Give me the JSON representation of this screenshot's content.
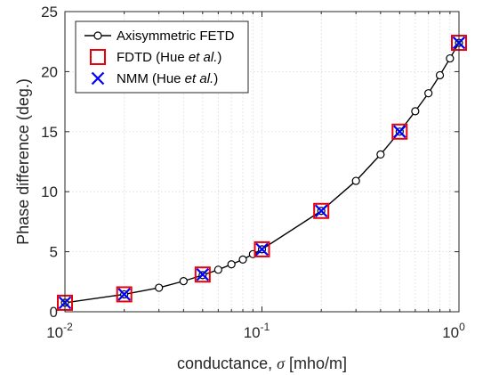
{
  "chart_data": {
    "type": "line",
    "xscale": "log",
    "xlim": [
      0.01,
      1
    ],
    "ylim": [
      0,
      25
    ],
    "grid": true,
    "legend_position": "top-left",
    "xlabel": {
      "prefix": "conductance, ",
      "symbol": "σ",
      "suffix": " [mho/m]"
    },
    "ylabel": "Phase difference (deg.)",
    "x_ticks": [
      {
        "value": 0.01,
        "base": "10",
        "exp": "-2"
      },
      {
        "value": 0.1,
        "base": "10",
        "exp": "-1"
      },
      {
        "value": 1,
        "base": "10",
        "exp": "0"
      }
    ],
    "y_ticks": [
      0,
      5,
      10,
      15,
      20,
      25
    ],
    "series": [
      {
        "key": "fetd",
        "name": "Axisymmetric FETD",
        "color": "#000000",
        "marker": "circle",
        "line": true,
        "x": [
          0.01,
          0.02,
          0.03,
          0.04,
          0.05,
          0.06,
          0.07,
          0.08,
          0.09,
          0.1,
          0.2,
          0.3,
          0.4,
          0.5,
          0.6,
          0.7,
          0.8,
          0.9,
          1.0
        ],
        "y": [
          0.75,
          1.45,
          2.0,
          2.55,
          3.05,
          3.5,
          3.95,
          4.35,
          4.8,
          5.2,
          8.4,
          10.9,
          13.1,
          15.0,
          16.7,
          18.2,
          19.7,
          21.1,
          22.4
        ]
      },
      {
        "key": "fdtd",
        "name": {
          "prefix": "FDTD (Hue ",
          "italic": "et al.",
          "suffix": ")"
        },
        "color": "#e8000b",
        "marker": "square",
        "line": false,
        "x": [
          0.01,
          0.02,
          0.05,
          0.1,
          0.2,
          0.5,
          1.0
        ],
        "y": [
          0.75,
          1.45,
          3.1,
          5.2,
          8.4,
          15.0,
          22.4
        ]
      },
      {
        "key": "nmm",
        "name": {
          "prefix": "NMM (Hue ",
          "italic": "et al.",
          "suffix": ")"
        },
        "color": "#0000ff",
        "marker": "x",
        "line": false,
        "x": [
          0.01,
          0.02,
          0.05,
          0.1,
          0.2,
          0.5,
          1.0
        ],
        "y": [
          0.75,
          1.45,
          3.1,
          5.2,
          8.4,
          15.0,
          22.4
        ]
      }
    ]
  }
}
